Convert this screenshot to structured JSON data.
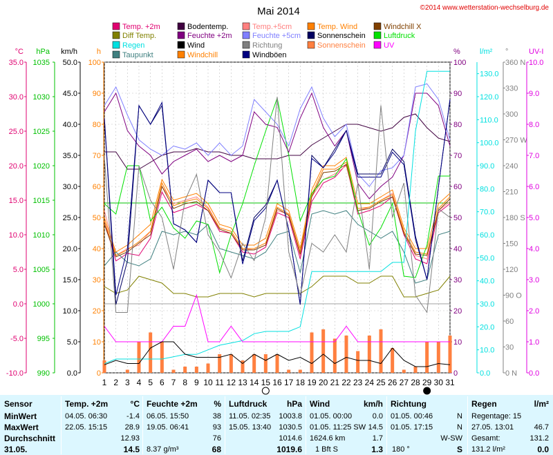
{
  "title": "Mai 2014",
  "copyright": "©2014 www.wetterstation-wechselburg.de",
  "legend": [
    {
      "label": "Temp. +2m",
      "color": "#e00070"
    },
    {
      "label": "Diff Temp.",
      "color": "#808000"
    },
    {
      "label": "Regen",
      "color": "#00e0e0"
    },
    {
      "label": "Taupunkt",
      "color": "#408080"
    },
    {
      "label": "Bodentemp.",
      "color": "#400040"
    },
    {
      "label": "Feuchte +2m",
      "color": "#800080"
    },
    {
      "label": "Wind",
      "color": "#000000"
    },
    {
      "label": "Windchill",
      "color": "#ff8000"
    },
    {
      "label": "Temp.+5cm",
      "color": "#ff8080"
    },
    {
      "label": "Feuchte +5cm",
      "color": "#8080ff"
    },
    {
      "label": "Richtung",
      "color": "#808080"
    },
    {
      "label": "Windböen",
      "color": "#000080"
    },
    {
      "label": "Temp. Wind",
      "color": "#ff8000"
    },
    {
      "label": "Sonnenschein",
      "color": "#000060"
    },
    {
      "label": "Sonnenschein",
      "color": "#ff8040"
    },
    {
      "label": "Windchill X",
      "color": "#804000"
    },
    {
      "label": "Luftdruck",
      "color": "#00e000"
    },
    {
      "label": "UV",
      "color": "#ff00ff"
    }
  ],
  "axes": {
    "temp": {
      "unit": "°C",
      "ticks": [
        "35.0",
        "30.0",
        "25.0",
        "20.0",
        "15.0",
        "10.0",
        "5.0",
        "0.0",
        "-5.0",
        "-10.0"
      ],
      "color": "#e00070"
    },
    "pressure": {
      "unit": "hPa",
      "ticks": [
        "1035",
        "1030",
        "1025",
        "1020",
        "1015",
        "1010",
        "1005",
        "1000",
        "995",
        "990"
      ],
      "color": "#00c000"
    },
    "wind": {
      "unit": "km/h",
      "ticks": [
        "50.0",
        "45.0",
        "40.0",
        "35.0",
        "30.0",
        "25.0",
        "20.0",
        "15.0",
        "10.0",
        "5.0",
        "0.0"
      ],
      "color": "#000000"
    },
    "hours": {
      "unit": "h",
      "ticks": [
        "100",
        "90",
        "80",
        "70",
        "60",
        "50",
        "40",
        "30",
        "20",
        "10",
        "0"
      ],
      "color": "#ff8000"
    },
    "humidity": {
      "unit": "%",
      "ticks": [
        "100",
        "90",
        "80",
        "70",
        "60",
        "50",
        "40",
        "30",
        "20",
        "10",
        "0"
      ],
      "color": "#800080"
    },
    "rain": {
      "unit": "l/m²",
      "ticks": [
        "130.0",
        "120.0",
        "110.0",
        "100.0",
        "90.0",
        "80.0",
        "70.0",
        "60.0",
        "50.0",
        "40.0",
        "30.0",
        "20.0",
        "10.0",
        "0.0"
      ],
      "color": "#00e0e0"
    },
    "direction": {
      "unit": "°",
      "ticks": [
        "360 N",
        "330",
        "300",
        "270 W",
        "240",
        "210",
        "180 S",
        "150",
        "120",
        "90  O",
        "60",
        "30",
        "0  N"
      ],
      "color": "#808080"
    },
    "uv": {
      "unit": "UV-I",
      "ticks": [
        "10.0",
        "9.0",
        "8.0",
        "7.0",
        "6.0",
        "5.0",
        "4.0",
        "3.0",
        "2.0",
        "1.0",
        "0.0"
      ],
      "color": "#e000e0"
    }
  },
  "chart_data": {
    "type": "line",
    "title": "Mai 2014",
    "x": [
      1,
      2,
      3,
      4,
      5,
      6,
      7,
      8,
      9,
      10,
      11,
      12,
      13,
      14,
      15,
      16,
      17,
      18,
      19,
      20,
      21,
      22,
      23,
      24,
      25,
      26,
      27,
      28,
      29,
      30,
      31
    ],
    "xlabel": "",
    "ylim_temp": [
      -10,
      35
    ],
    "ylim_pressure": [
      990,
      1035
    ],
    "ylim_wind": [
      0,
      50
    ],
    "ylim_humidity": [
      0,
      100
    ],
    "ylim_rain": [
      0,
      135
    ],
    "ylim_direction": [
      0,
      360
    ],
    "ylim_uv": [
      0,
      10
    ],
    "series": [
      {
        "name": "Temp. +2m",
        "axis": "temp",
        "color": "#e00070",
        "values": [
          12.0,
          6.2,
          7.3,
          7.0,
          9.5,
          16.2,
          13.2,
          13.8,
          14.4,
          13.5,
          10.5,
          10.2,
          7.5,
          7.2,
          8.2,
          13.2,
          12.5,
          6.5,
          14.8,
          17.5,
          18.3,
          20.2,
          13.0,
          13.5,
          14.2,
          15.5,
          10.0,
          6.5,
          5.8,
          13.2,
          14.5
        ]
      },
      {
        "name": "Temp.+5cm",
        "axis": "temp",
        "color": "#ff8080",
        "values": [
          13.5,
          7.0,
          8.0,
          8.5,
          10.5,
          17.0,
          14.5,
          15.0,
          15.5,
          14.0,
          11.0,
          10.5,
          8.0,
          7.8,
          8.5,
          13.5,
          13.0,
          7.0,
          15.5,
          18.0,
          18.8,
          20.0,
          13.5,
          14.0,
          15.0,
          16.0,
          10.5,
          7.0,
          6.5,
          13.5,
          14.8
        ]
      },
      {
        "name": "Temp. Wind",
        "axis": "temp",
        "color": "#ff8000",
        "values": [
          12.5,
          7.5,
          8.5,
          10.0,
          11.5,
          18.0,
          15.0,
          15.5,
          16.0,
          14.5,
          11.5,
          11.0,
          8.5,
          8.5,
          9.5,
          14.5,
          13.5,
          8.0,
          16.5,
          20.0,
          20.0,
          21.2,
          14.5,
          14.5,
          15.5,
          16.5,
          11.0,
          8.0,
          8.0,
          14.5,
          16.0
        ]
      },
      {
        "name": "Windchill",
        "axis": "temp",
        "color": "#ff8000",
        "values": [
          12.0,
          7.0,
          7.8,
          9.0,
          10.5,
          17.5,
          14.2,
          14.8,
          15.2,
          13.8,
          11.0,
          10.5,
          8.0,
          8.0,
          8.8,
          14.0,
          13.0,
          7.5,
          15.8,
          19.5,
          19.5,
          20.5,
          13.8,
          14.0,
          15.0,
          15.8,
          10.5,
          7.5,
          7.2,
          13.8,
          15.5
        ]
      },
      {
        "name": "Windchill X",
        "axis": "temp",
        "color": "#804000",
        "values": [
          11.5,
          6.8,
          7.5,
          8.8,
          10.0,
          17.0,
          13.8,
          14.5,
          14.8,
          13.5,
          10.8,
          10.2,
          7.8,
          7.8,
          8.5,
          13.8,
          12.8,
          7.2,
          15.5,
          19.0,
          19.2,
          20.2,
          13.5,
          13.8,
          14.8,
          15.5,
          10.2,
          7.2,
          7.0,
          13.5,
          15.2
        ]
      },
      {
        "name": "Taupunkt",
        "axis": "temp",
        "color": "#408080",
        "values": [
          5.5,
          7.5,
          6.0,
          5.5,
          6.5,
          10.5,
          10.0,
          10.5,
          10.0,
          11.5,
          8.0,
          7.5,
          7.0,
          6.5,
          7.5,
          10.0,
          10.5,
          4.5,
          13.0,
          13.5,
          13.0,
          13.5,
          11.5,
          10.5,
          9.5,
          10.5,
          7.5,
          3.0,
          3.5,
          10.0,
          10.5
        ]
      },
      {
        "name": "Bodentemp.",
        "axis": "temp",
        "color": "#400040",
        "values": [
          22.0,
          22.0,
          19.5,
          19.5,
          20.5,
          21.5,
          22.0,
          22.0,
          22.5,
          22.0,
          22.0,
          21.5,
          21.5,
          21.0,
          21.0,
          21.0,
          21.5,
          21.5,
          23.0,
          24.0,
          25.0,
          26.0,
          26.0,
          25.5,
          25.0,
          25.5,
          27.0,
          27.5,
          25.5,
          24.0,
          23.5
        ]
      },
      {
        "name": "Diff Temp.",
        "axis": "temp",
        "color": "#808000",
        "values": [
          2.5,
          1.5,
          2.0,
          4.0,
          3.5,
          3.0,
          1.5,
          1.5,
          1.0,
          1.0,
          1.5,
          1.5,
          1.5,
          1.0,
          1.5,
          1.5,
          1.5,
          1.5,
          2.5,
          4.0,
          4.0,
          4.0,
          3.0,
          3.0,
          4.0,
          4.0,
          1.0,
          1.0,
          1.5,
          2.0,
          4.0
        ]
      },
      {
        "name": "Luftdruck",
        "axis": "pressure",
        "color": "#00e000",
        "values": [
          1014.5,
          1013.0,
          1020.0,
          1020.0,
          1012.0,
          1014.0,
          1011.0,
          1009.5,
          1012.0,
          1011.5,
          1004.5,
          1010.0,
          1014.5,
          1020.0,
          1025.0,
          1029.8,
          1021.5,
          1012.0,
          1016.0,
          1018.0,
          1018.5,
          1021.0,
          1013.5,
          1008.5,
          1011.0,
          1014.5,
          1004.0,
          1003.8,
          1008.5,
          1018.5,
          1018.5
        ]
      },
      {
        "name": "Feuchte +2m",
        "axis": "humidity",
        "color": "#800080",
        "values": [
          84,
          90,
          78,
          73,
          70,
          64,
          68,
          70,
          72,
          68,
          70,
          68,
          70,
          84,
          80,
          79,
          71,
          82,
          90,
          79,
          73,
          78,
          61,
          56,
          60,
          63,
          70,
          90,
          90,
          86,
          73
        ]
      },
      {
        "name": "Feuchte +5cm",
        "axis": "humidity",
        "color": "#8080ff",
        "values": [
          86,
          92,
          83,
          75,
          72,
          70,
          73,
          72,
          74,
          70,
          74,
          70,
          73,
          88,
          84,
          80,
          73,
          85,
          92,
          82,
          76,
          80,
          64,
          60,
          65,
          66,
          70,
          92,
          93,
          88,
          75
        ]
      },
      {
        "name": "Sonnenschein",
        "axis": "hours",
        "color": "#000060",
        "values": [
          82,
          22,
          36,
          86,
          80,
          86,
          48,
          46,
          42,
          62,
          58,
          58,
          36,
          50,
          54,
          62,
          46,
          22,
          70,
          66,
          72,
          78,
          64,
          64,
          64,
          72,
          68,
          44,
          30,
          60,
          88
        ]
      },
      {
        "name": "Windböen",
        "axis": "wind",
        "color": "#000080",
        "values": [
          41.0,
          12.5,
          20.0,
          43.0,
          40.0,
          43.5,
          24.0,
          23.0,
          21.0,
          31.0,
          29.0,
          29.0,
          17.5,
          24.5,
          26.5,
          31.0,
          23.0,
          11.0,
          34.5,
          33.0,
          35.5,
          39.0,
          31.5,
          31.5,
          31.5,
          35.5,
          33.5,
          21.5,
          15.0,
          30.0,
          44.0
        ]
      },
      {
        "name": "Richtung",
        "axis": "direction",
        "color": "#808080",
        "values": [
          250,
          70,
          70,
          240,
          200,
          180,
          120,
          200,
          230,
          160,
          140,
          110,
          150,
          130,
          180,
          320,
          140,
          90,
          150,
          140,
          160,
          140,
          220,
          120,
          310,
          180,
          220,
          90,
          70,
          190,
          180
        ]
      },
      {
        "name": "Regen",
        "axis": "rain",
        "color": "#00e0e0",
        "values": [
          4,
          6,
          6,
          6,
          6,
          6,
          7,
          8,
          8,
          10,
          12,
          13,
          14,
          17,
          18,
          18,
          18,
          20,
          44,
          44,
          44,
          44,
          44,
          44,
          44,
          48,
          48,
          105,
          131,
          131,
          131
        ]
      },
      {
        "name": "UV",
        "axis": "uv",
        "color": "#ff00ff",
        "values": [
          1.5,
          1.0,
          1.0,
          1.0,
          1.0,
          1.0,
          1.5,
          1.5,
          2.5,
          1.0,
          1.0,
          1.5,
          1.0,
          1.0,
          1.0,
          1.0,
          1.0,
          1.0,
          1.0,
          1.0,
          1.0,
          1.5,
          1.0,
          1.0,
          1.0,
          1.0,
          1.0,
          1.0,
          1.0,
          1.0,
          1.0
        ]
      },
      {
        "name": "Wind",
        "axis": "wind",
        "color": "#000000",
        "values": [
          1.3,
          2.0,
          1.5,
          1.5,
          4.0,
          5.0,
          5.0,
          3.0,
          2.5,
          2.5,
          2.5,
          3.0,
          1.5,
          3.0,
          2.0,
          3.0,
          2.0,
          2.5,
          1.5,
          3.0,
          1.5,
          2.5,
          2.0,
          2.0,
          1.5,
          4.0,
          2.0,
          1.0,
          1.0,
          1.5,
          1.3
        ]
      }
    ],
    "bars": {
      "name": "Sonnenschein",
      "axis": "hours",
      "color": "#ff8040",
      "values": [
        4,
        0,
        1,
        10,
        13,
        10,
        1,
        2,
        2,
        3,
        6,
        6,
        4,
        6,
        6,
        6,
        1,
        1,
        13,
        14,
        11,
        12,
        7,
        12,
        14,
        8,
        1,
        2,
        10,
        10,
        12
      ]
    }
  },
  "moon": [
    {
      "day": 15,
      "phase": "full"
    },
    {
      "day": 29,
      "phase": "new"
    }
  ],
  "table": {
    "col1": {
      "header": "Sensor",
      "rows": [
        "MinWert",
        "MaxWert",
        "Durchschnitt",
        "31.05."
      ]
    },
    "temp": {
      "header": "Temp. +2m",
      "unit": "°C",
      "min_time": "04.05.  06:30",
      "min_val": "-1.4",
      "max_time": "22.05.  15:15",
      "max_val": "28.9",
      "avg": "12.93",
      "cur": "14.5"
    },
    "hum": {
      "header": "Feuchte +2m",
      "unit": "%",
      "min_time": "06.05.  15:50",
      "min_val": "38",
      "max_time": "19.05.  06:41",
      "max_val": "93",
      "avg": "76",
      "extra": "8.37 g/m³",
      "cur": "68"
    },
    "pres": {
      "header": "Luftdruck",
      "unit": "hPa",
      "min_time": "11.05.  02:35",
      "min_val": "1003.8",
      "max_time": "15.05.  13:40",
      "max_val": "1030.5",
      "avg": "1014.6",
      "cur": "1019.6"
    },
    "wind": {
      "header": "Wind",
      "unit": "km/h",
      "min_time": "01.05.  00:00",
      "min_val": "0.0",
      "max_time": "01.05.  11:25 SW",
      "max_val": "14.5",
      "avg_extra": "1624.6 km",
      "avg": "1.7",
      "bft": "1 Bft S",
      "cur": "1.3"
    },
    "dir": {
      "header": "Richtung",
      "min_time": "01.05.  00:46",
      "min_val": "N",
      "max_time": "01.05.  17:15",
      "max_val": "N",
      "avg": "W-SW",
      "cur_deg": "180 °",
      "cur": "S"
    },
    "rain": {
      "header": "Regen",
      "unit": "l/m²",
      "days": "Regentage: 15",
      "max_time": "27.05.  13:01",
      "max_val": "46.7",
      "total_label": "Gesamt:",
      "total": "131.2",
      "cur_left": "131.2 l/m²",
      "cur": "0.0"
    }
  }
}
